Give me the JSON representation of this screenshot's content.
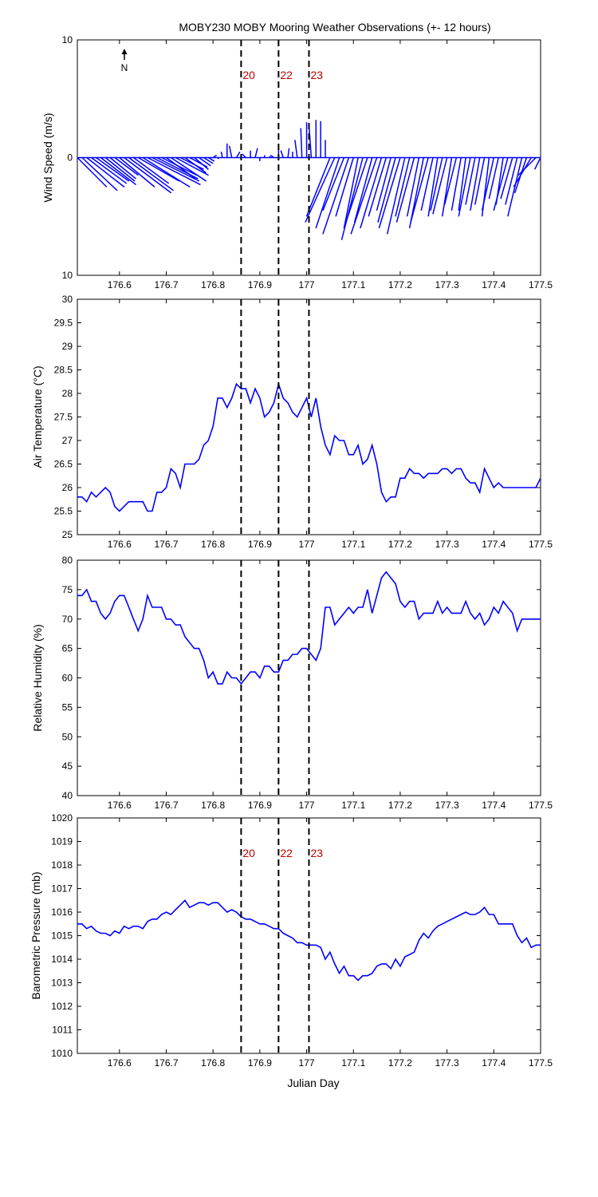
{
  "figure": {
    "title": "MOBY230 MOBY Mooring Weather Observations (+- 12 hours)",
    "xlabel": "Julian Day"
  },
  "colors": {
    "series": "#0000ff",
    "marker_label": "#c00000",
    "axes": "#000000"
  },
  "chart_data": [
    {
      "id": "wind",
      "type": "line",
      "subtype": "wind vector stick plot",
      "ylabel": "Wind Speed (m/s)",
      "xlim": [
        176.51,
        177.5
      ],
      "ylim": [
        -10,
        10
      ],
      "xticks": [
        176.6,
        176.7,
        176.8,
        176.9,
        177,
        177.1,
        177.2,
        177.3,
        177.4,
        177.5
      ],
      "yticks": [
        10,
        0,
        10
      ],
      "north_indicator": "N",
      "icon": "north-arrow-icon",
      "markers": [
        {
          "x": 176.86,
          "label": "20"
        },
        {
          "x": 176.94,
          "label": "22"
        },
        {
          "x": 177.005,
          "label": "23"
        }
      ],
      "vectors": {
        "x": [
          176.51,
          176.52,
          176.53,
          176.54,
          176.55,
          176.56,
          176.57,
          176.58,
          176.59,
          176.6,
          176.61,
          176.62,
          176.63,
          176.64,
          176.65,
          176.66,
          176.67,
          176.68,
          176.69,
          176.7,
          176.71,
          176.72,
          176.73,
          176.74,
          176.75,
          176.76,
          176.77,
          176.78,
          176.79,
          176.8,
          176.81,
          176.82,
          176.83,
          176.84,
          176.85,
          176.86,
          176.87,
          176.88,
          176.89,
          176.9,
          176.91,
          176.92,
          176.93,
          176.94,
          176.95,
          176.96,
          176.97,
          176.98,
          176.99,
          177.0,
          177.01,
          177.02,
          177.03,
          177.04,
          177.05,
          177.06,
          177.07,
          177.08,
          177.09,
          177.1,
          177.11,
          177.12,
          177.13,
          177.14,
          177.15,
          177.16,
          177.17,
          177.18,
          177.19,
          177.2,
          177.21,
          177.22,
          177.23,
          177.24,
          177.25,
          177.26,
          177.27,
          177.28,
          177.29,
          177.3,
          177.31,
          177.32,
          177.33,
          177.34,
          177.35,
          177.36,
          177.37,
          177.38,
          177.39,
          177.4,
          177.41,
          177.42,
          177.43,
          177.44,
          177.45,
          177.46,
          177.47,
          177.48,
          177.49,
          177.5
        ],
        "u": [
          2.5,
          3.0,
          3.2,
          3.0,
          2.8,
          3.0,
          2.5,
          2.2,
          2.0,
          3.0,
          4.0,
          3.8,
          3.0,
          3.5,
          4.0,
          4.5,
          4.0,
          3.5,
          3.0,
          2.5,
          3.0,
          2.8,
          2.0,
          1.8,
          1.5,
          1.2,
          1.0,
          0.8,
          0.5,
          0.3,
          0.1,
          -0.1,
          0.0,
          -0.2,
          0.3,
          0.0,
          -0.3,
          0.0,
          0.2,
          0.0,
          0.0,
          0.1,
          -0.3,
          0.0,
          -0.2,
          0.1,
          0.0,
          -0.2,
          -0.1,
          0.0,
          -0.2,
          0.0,
          0.0,
          0.0,
          -2.0,
          -2.5,
          -2.0,
          -1.8,
          -2.2,
          -1.5,
          -1.2,
          -1.8,
          -2.0,
          -1.5,
          -2.2,
          -1.8,
          -1.5,
          -1.2,
          -1.5,
          -1.8,
          -1.5,
          -1.2,
          -1.5,
          -1.0,
          -1.2,
          -1.5,
          -1.0,
          -0.8,
          -1.0,
          -1.2,
          -0.8,
          -1.0,
          -0.8,
          -0.6,
          -1.0,
          -0.8,
          -0.8,
          -0.8,
          -0.6,
          -1.0,
          -0.8,
          -0.6,
          -1.2,
          -1.0,
          -1.0,
          -1.2,
          -1.0,
          -1.5,
          -1.5,
          -0.5
        ],
        "v": [
          -2.5,
          -2.8,
          -2.5,
          -2.2,
          -2.0,
          -2.3,
          -2.0,
          -1.8,
          -1.5,
          -2.5,
          -3.0,
          -2.8,
          -2.2,
          -2.0,
          -2.5,
          -2.3,
          -2.0,
          -1.8,
          -1.5,
          -1.8,
          -2.0,
          -1.5,
          -1.0,
          -1.3,
          -0.8,
          -1.0,
          -0.7,
          -0.5,
          -0.3,
          0.2,
          -0.1,
          0.5,
          1.2,
          1.0,
          0.5,
          -0.2,
          0.3,
          0.6,
          0.8,
          -0.3,
          0.2,
          0.1,
          0.2,
          0.8,
          0.6,
          0.8,
          0.5,
          1.5,
          2.5,
          3.0,
          2.8,
          3.2,
          3.1,
          1.5,
          -5.0,
          -5.5,
          -6.0,
          -4.5,
          -6.5,
          -5.0,
          -6.0,
          -7.0,
          -6.0,
          -5.5,
          -6.5,
          -6.0,
          -5.0,
          -4.5,
          -5.5,
          -6.0,
          -6.5,
          -5.0,
          -5.5,
          -5.0,
          -6.0,
          -5.5,
          -4.5,
          -5.0,
          -4.5,
          -4.8,
          -5.0,
          -4.0,
          -4.5,
          -4.5,
          -5.0,
          -4.0,
          -4.5,
          -4.0,
          -5.0,
          -4.5,
          -3.5,
          -4.0,
          -4.5,
          -3.5,
          -4.0,
          -5.0,
          -3.0,
          -2.5,
          -1.5,
          -1.0
        ]
      }
    },
    {
      "id": "airtemp",
      "type": "line",
      "ylabel": "Air Temperature (°C)",
      "xlim": [
        176.51,
        177.5
      ],
      "ylim": [
        25,
        30
      ],
      "xticks": [
        176.6,
        176.7,
        176.8,
        176.9,
        177,
        177.1,
        177.2,
        177.3,
        177.4,
        177.5
      ],
      "yticks": [
        25,
        25.5,
        26,
        26.5,
        27,
        27.5,
        28,
        28.5,
        29,
        29.5,
        30
      ],
      "markers": [
        {
          "x": 176.86
        },
        {
          "x": 176.94
        },
        {
          "x": 177.005
        }
      ],
      "series": [
        {
          "x": [
            176.51,
            176.52,
            176.53,
            176.54,
            176.55,
            176.56,
            176.57,
            176.58,
            176.59,
            176.6,
            176.61,
            176.62,
            176.63,
            176.64,
            176.65,
            176.66,
            176.67,
            176.68,
            176.69,
            176.7,
            176.71,
            176.72,
            176.73,
            176.74,
            176.75,
            176.76,
            176.77,
            176.78,
            176.79,
            176.8,
            176.81,
            176.82,
            176.83,
            176.84,
            176.85,
            176.86,
            176.87,
            176.88,
            176.89,
            176.9,
            176.91,
            176.92,
            176.93,
            176.94,
            176.95,
            176.96,
            176.97,
            176.98,
            176.99,
            177.0,
            177.01,
            177.02,
            177.03,
            177.04,
            177.05,
            177.06,
            177.07,
            177.08,
            177.09,
            177.1,
            177.11,
            177.12,
            177.13,
            177.14,
            177.15,
            177.16,
            177.17,
            177.18,
            177.19,
            177.2,
            177.21,
            177.22,
            177.23,
            177.24,
            177.25,
            177.26,
            177.27,
            177.28,
            177.29,
            177.3,
            177.31,
            177.32,
            177.33,
            177.34,
            177.35,
            177.36,
            177.37,
            177.38,
            177.39,
            177.4,
            177.41,
            177.42,
            177.43,
            177.44,
            177.45,
            177.46,
            177.47,
            177.48,
            177.49,
            177.5
          ],
          "y": [
            25.8,
            25.8,
            25.7,
            25.9,
            25.8,
            25.9,
            26.0,
            25.9,
            25.6,
            25.5,
            25.6,
            25.7,
            25.7,
            25.7,
            25.7,
            25.5,
            25.5,
            25.9,
            25.9,
            26.0,
            26.4,
            26.3,
            26.0,
            26.5,
            26.5,
            26.5,
            26.6,
            26.9,
            27.0,
            27.3,
            27.9,
            27.9,
            27.7,
            27.9,
            28.2,
            28.1,
            28.1,
            27.8,
            28.1,
            27.9,
            27.5,
            27.6,
            27.8,
            28.2,
            27.9,
            27.8,
            27.6,
            27.5,
            27.7,
            27.9,
            27.5,
            27.9,
            27.3,
            26.9,
            26.7,
            27.1,
            27.0,
            27.0,
            26.7,
            26.7,
            26.9,
            26.5,
            26.6,
            26.9,
            26.5,
            25.9,
            25.7,
            25.8,
            25.8,
            26.2,
            26.2,
            26.4,
            26.3,
            26.3,
            26.2,
            26.3,
            26.3,
            26.3,
            26.4,
            26.4,
            26.3,
            26.4,
            26.4,
            26.2,
            26.1,
            26.1,
            25.9,
            26.4,
            26.2,
            26.0,
            26.1,
            26.0,
            26.0,
            26.0,
            26.0,
            26.0,
            26.0,
            26.0,
            26.0,
            26.2
          ]
        }
      ]
    },
    {
      "id": "humidity",
      "type": "line",
      "ylabel": "Relative Humidity (%)",
      "xlim": [
        176.51,
        177.5
      ],
      "ylim": [
        40,
        80
      ],
      "xticks": [
        176.6,
        176.7,
        176.8,
        176.9,
        177,
        177.1,
        177.2,
        177.3,
        177.4,
        177.5
      ],
      "yticks": [
        40,
        45,
        50,
        55,
        60,
        65,
        70,
        75,
        80
      ],
      "markers": [
        {
          "x": 176.86
        },
        {
          "x": 176.94
        },
        {
          "x": 177.005
        }
      ],
      "series": [
        {
          "x": [
            176.51,
            176.52,
            176.53,
            176.54,
            176.55,
            176.56,
            176.57,
            176.58,
            176.59,
            176.6,
            176.61,
            176.62,
            176.63,
            176.64,
            176.65,
            176.66,
            176.67,
            176.68,
            176.69,
            176.7,
            176.71,
            176.72,
            176.73,
            176.74,
            176.75,
            176.76,
            176.77,
            176.78,
            176.79,
            176.8,
            176.81,
            176.82,
            176.83,
            176.84,
            176.85,
            176.86,
            176.87,
            176.88,
            176.89,
            176.9,
            176.91,
            176.92,
            176.93,
            176.94,
            176.95,
            176.96,
            176.97,
            176.98,
            176.99,
            177.0,
            177.01,
            177.02,
            177.03,
            177.04,
            177.05,
            177.06,
            177.07,
            177.08,
            177.09,
            177.1,
            177.11,
            177.12,
            177.13,
            177.14,
            177.15,
            177.16,
            177.17,
            177.18,
            177.19,
            177.2,
            177.21,
            177.22,
            177.23,
            177.24,
            177.25,
            177.26,
            177.27,
            177.28,
            177.29,
            177.3,
            177.31,
            177.32,
            177.33,
            177.34,
            177.35,
            177.36,
            177.37,
            177.38,
            177.39,
            177.4,
            177.41,
            177.42,
            177.43,
            177.44,
            177.45,
            177.46,
            177.47,
            177.48,
            177.49,
            177.5
          ],
          "y": [
            74,
            74,
            75,
            73,
            73,
            71,
            70,
            71,
            73,
            74,
            74,
            72,
            70,
            68,
            70,
            74,
            72,
            72,
            72,
            70,
            70,
            69,
            69,
            67,
            66,
            65,
            65,
            63,
            60,
            61,
            59,
            59,
            61,
            60,
            60,
            59,
            60,
            61,
            61,
            60,
            62,
            62,
            61,
            61,
            63,
            63,
            64,
            64,
            65,
            65,
            64,
            63,
            65,
            72,
            72,
            69,
            70,
            71,
            72,
            71,
            72,
            72,
            75,
            71,
            74,
            77,
            78,
            77,
            76,
            73,
            72,
            73,
            73,
            70,
            71,
            71,
            71,
            73,
            71,
            72,
            71,
            71,
            71,
            73,
            71,
            70,
            71,
            69,
            70,
            72,
            71,
            73,
            72,
            71,
            68,
            70,
            70,
            70,
            70,
            70
          ]
        }
      ]
    },
    {
      "id": "pressure",
      "type": "line",
      "ylabel": "Barometric Pressure (mb)",
      "xlabel": "Julian Day",
      "xlim": [
        176.51,
        177.5
      ],
      "ylim": [
        1010,
        1020
      ],
      "xticks": [
        176.6,
        176.7,
        176.8,
        176.9,
        177,
        177.1,
        177.2,
        177.3,
        177.4,
        177.5
      ],
      "yticks": [
        1010,
        1011,
        1012,
        1013,
        1014,
        1015,
        1016,
        1017,
        1018,
        1019,
        1020
      ],
      "markers": [
        {
          "x": 176.86,
          "label": "20"
        },
        {
          "x": 176.94,
          "label": "22"
        },
        {
          "x": 177.005,
          "label": "23"
        }
      ],
      "series": [
        {
          "x": [
            176.51,
            176.52,
            176.53,
            176.54,
            176.55,
            176.56,
            176.57,
            176.58,
            176.59,
            176.6,
            176.61,
            176.62,
            176.63,
            176.64,
            176.65,
            176.66,
            176.67,
            176.68,
            176.69,
            176.7,
            176.71,
            176.72,
            176.73,
            176.74,
            176.75,
            176.76,
            176.77,
            176.78,
            176.79,
            176.8,
            176.81,
            176.82,
            176.83,
            176.84,
            176.85,
            176.86,
            176.87,
            176.88,
            176.89,
            176.9,
            176.91,
            176.92,
            176.93,
            176.94,
            176.95,
            176.96,
            176.97,
            176.98,
            176.99,
            177.0,
            177.01,
            177.02,
            177.03,
            177.04,
            177.05,
            177.06,
            177.07,
            177.08,
            177.09,
            177.1,
            177.11,
            177.12,
            177.13,
            177.14,
            177.15,
            177.16,
            177.17,
            177.18,
            177.19,
            177.2,
            177.21,
            177.22,
            177.23,
            177.24,
            177.25,
            177.26,
            177.27,
            177.28,
            177.29,
            177.3,
            177.31,
            177.32,
            177.33,
            177.34,
            177.35,
            177.36,
            177.37,
            177.38,
            177.39,
            177.4,
            177.41,
            177.42,
            177.43,
            177.44,
            177.45,
            177.46,
            177.47,
            177.48,
            177.49,
            177.5
          ],
          "y": [
            1015.5,
            1015.5,
            1015.3,
            1015.4,
            1015.2,
            1015.1,
            1015.1,
            1015.0,
            1015.2,
            1015.1,
            1015.4,
            1015.3,
            1015.4,
            1015.4,
            1015.3,
            1015.6,
            1015.7,
            1015.7,
            1015.9,
            1016.0,
            1015.9,
            1016.1,
            1016.3,
            1016.5,
            1016.2,
            1016.3,
            1016.4,
            1016.4,
            1016.3,
            1016.4,
            1016.4,
            1016.2,
            1016.0,
            1016.1,
            1016.0,
            1015.8,
            1015.7,
            1015.7,
            1015.6,
            1015.5,
            1015.5,
            1015.4,
            1015.3,
            1015.3,
            1015.1,
            1015.0,
            1014.9,
            1014.7,
            1014.7,
            1014.6,
            1014.6,
            1014.6,
            1014.5,
            1014.0,
            1014.3,
            1013.8,
            1013.4,
            1013.7,
            1013.3,
            1013.3,
            1013.1,
            1013.3,
            1013.3,
            1013.4,
            1013.7,
            1013.8,
            1013.8,
            1013.6,
            1014.0,
            1013.7,
            1014.1,
            1014.2,
            1014.3,
            1014.8,
            1015.1,
            1014.9,
            1015.2,
            1015.4,
            1015.5,
            1015.6,
            1015.7,
            1015.8,
            1015.9,
            1016.0,
            1015.9,
            1015.9,
            1016.0,
            1016.2,
            1015.9,
            1015.9,
            1015.5,
            1015.5,
            1015.5,
            1015.5,
            1015.0,
            1014.7,
            1014.9,
            1014.5,
            1014.6,
            1014.6
          ]
        }
      ]
    }
  ]
}
